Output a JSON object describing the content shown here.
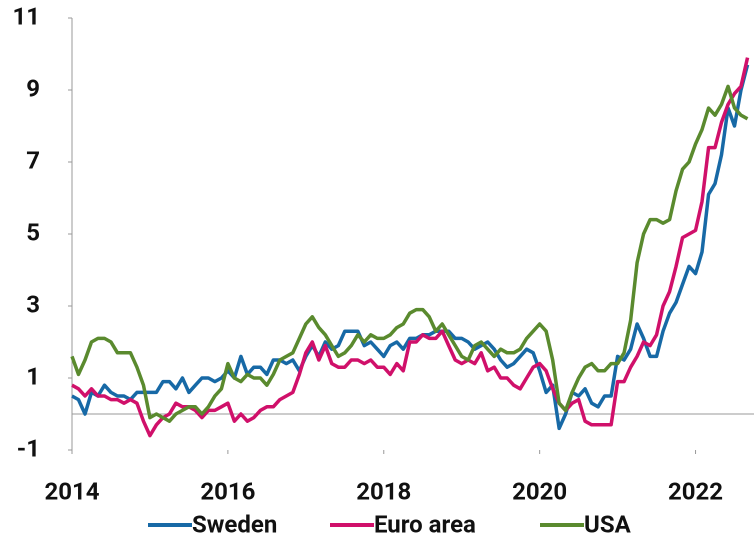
{
  "chart_data": {
    "type": "line",
    "x": [
      2014,
      2014.083,
      2014.167,
      2014.25,
      2014.333,
      2014.417,
      2014.5,
      2014.583,
      2014.667,
      2014.75,
      2014.833,
      2014.917,
      2015,
      2015.083,
      2015.167,
      2015.25,
      2015.333,
      2015.417,
      2015.5,
      2015.583,
      2015.667,
      2015.75,
      2015.833,
      2015.917,
      2016,
      2016.083,
      2016.167,
      2016.25,
      2016.333,
      2016.417,
      2016.5,
      2016.583,
      2016.667,
      2016.75,
      2016.833,
      2016.917,
      2017,
      2017.083,
      2017.167,
      2017.25,
      2017.333,
      2017.417,
      2017.5,
      2017.583,
      2017.667,
      2017.75,
      2017.833,
      2017.917,
      2018,
      2018.083,
      2018.167,
      2018.25,
      2018.333,
      2018.417,
      2018.5,
      2018.583,
      2018.667,
      2018.75,
      2018.833,
      2018.917,
      2019,
      2019.083,
      2019.167,
      2019.25,
      2019.333,
      2019.417,
      2019.5,
      2019.583,
      2019.667,
      2019.75,
      2019.833,
      2019.917,
      2020,
      2020.083,
      2020.167,
      2020.25,
      2020.333,
      2020.417,
      2020.5,
      2020.583,
      2020.667,
      2020.75,
      2020.833,
      2020.917,
      2021,
      2021.083,
      2021.167,
      2021.25,
      2021.333,
      2021.417,
      2021.5,
      2021.583,
      2021.667,
      2021.75,
      2021.833,
      2021.917,
      2022,
      2022.083,
      2022.167,
      2022.25,
      2022.333,
      2022.417,
      2022.5,
      2022.583,
      2022.667
    ],
    "series": [
      {
        "name": "Sweden",
        "color": "#1769a6",
        "values": [
          0.5,
          0.4,
          0.0,
          0.6,
          0.5,
          0.8,
          0.6,
          0.5,
          0.5,
          0.4,
          0.6,
          0.6,
          0.6,
          0.6,
          0.9,
          0.9,
          0.7,
          1.0,
          0.6,
          0.8,
          1.0,
          1.0,
          0.9,
          1.0,
          1.2,
          1.0,
          1.6,
          1.1,
          1.3,
          1.3,
          1.1,
          1.5,
          1.5,
          1.4,
          1.5,
          1.2,
          1.6,
          1.9,
          1.6,
          2.0,
          1.8,
          1.9,
          2.3,
          2.3,
          2.3,
          1.9,
          2.0,
          1.8,
          1.6,
          1.9,
          2.0,
          1.8,
          2.1,
          2.1,
          2.2,
          2.2,
          2.3,
          2.3,
          2.3,
          2.1,
          2.1,
          2.0,
          1.8,
          1.9,
          2.0,
          1.8,
          1.5,
          1.3,
          1.4,
          1.6,
          1.8,
          1.7,
          1.2,
          0.6,
          0.8,
          -0.4,
          0.0,
          0.6,
          0.5,
          0.7,
          0.3,
          0.2,
          0.5,
          0.5,
          1.6,
          1.5,
          1.8,
          2.5,
          2.1,
          1.6,
          1.6,
          2.3,
          2.8,
          3.1,
          3.6,
          4.1,
          3.9,
          4.5,
          6.1,
          6.4,
          7.2,
          8.5,
          8.0,
          9.0,
          9.7
        ]
      },
      {
        "name": "Euro area",
        "color": "#d0106a",
        "values": [
          0.8,
          0.7,
          0.5,
          0.7,
          0.5,
          0.5,
          0.4,
          0.4,
          0.3,
          0.4,
          0.3,
          -0.2,
          -0.6,
          -0.3,
          -0.1,
          0.0,
          0.3,
          0.2,
          0.2,
          0.1,
          -0.1,
          0.1,
          0.1,
          0.2,
          0.3,
          -0.2,
          0.0,
          -0.2,
          -0.1,
          0.1,
          0.2,
          0.2,
          0.4,
          0.5,
          0.6,
          1.1,
          1.7,
          2.0,
          1.5,
          1.9,
          1.4,
          1.3,
          1.3,
          1.5,
          1.5,
          1.4,
          1.5,
          1.3,
          1.3,
          1.1,
          1.4,
          1.2,
          2.0,
          2.0,
          2.2,
          2.1,
          2.1,
          2.3,
          1.9,
          1.5,
          1.4,
          1.5,
          1.4,
          1.7,
          1.2,
          1.3,
          1.0,
          1.0,
          0.8,
          0.7,
          1.0,
          1.3,
          1.4,
          1.2,
          0.7,
          0.3,
          0.1,
          0.3,
          0.4,
          -0.2,
          -0.3,
          -0.3,
          -0.3,
          -0.3,
          0.9,
          0.9,
          1.3,
          1.6,
          2.0,
          1.9,
          2.2,
          3.0,
          3.4,
          4.1,
          4.9,
          5.0,
          5.1,
          5.9,
          7.4,
          7.4,
          8.1,
          8.6,
          8.9,
          9.1,
          9.9
        ]
      },
      {
        "name": "USA",
        "color": "#5a8a2e",
        "values": [
          1.6,
          1.1,
          1.5,
          2.0,
          2.1,
          2.1,
          2.0,
          1.7,
          1.7,
          1.7,
          1.3,
          0.8,
          -0.1,
          0.0,
          -0.1,
          -0.2,
          0.0,
          0.1,
          0.2,
          0.2,
          0.0,
          0.2,
          0.5,
          0.7,
          1.4,
          1.0,
          0.9,
          1.1,
          1.0,
          1.0,
          0.8,
          1.1,
          1.5,
          1.6,
          1.7,
          2.1,
          2.5,
          2.7,
          2.4,
          2.2,
          1.9,
          1.6,
          1.7,
          1.9,
          2.2,
          2.0,
          2.2,
          2.1,
          2.1,
          2.2,
          2.4,
          2.5,
          2.8,
          2.9,
          2.9,
          2.7,
          2.3,
          2.5,
          2.2,
          1.9,
          1.6,
          1.5,
          1.9,
          2.0,
          1.8,
          1.6,
          1.8,
          1.7,
          1.7,
          1.8,
          2.1,
          2.3,
          2.5,
          2.3,
          1.5,
          0.3,
          0.1,
          0.6,
          1.0,
          1.3,
          1.4,
          1.2,
          1.2,
          1.4,
          1.4,
          1.7,
          2.6,
          4.2,
          5.0,
          5.4,
          5.4,
          5.3,
          5.4,
          6.2,
          6.8,
          7.0,
          7.5,
          7.9,
          8.5,
          8.3,
          8.6,
          9.1,
          8.5,
          8.3,
          8.2
        ]
      }
    ],
    "xlim": [
      2014,
      2022.75
    ],
    "xticks": [
      2014,
      2016,
      2018,
      2020,
      2022
    ],
    "ylim": [
      -1,
      11
    ],
    "yticks": [
      -1,
      1,
      3,
      5,
      7,
      9,
      11
    ],
    "grid": false,
    "legend": "bottom"
  }
}
